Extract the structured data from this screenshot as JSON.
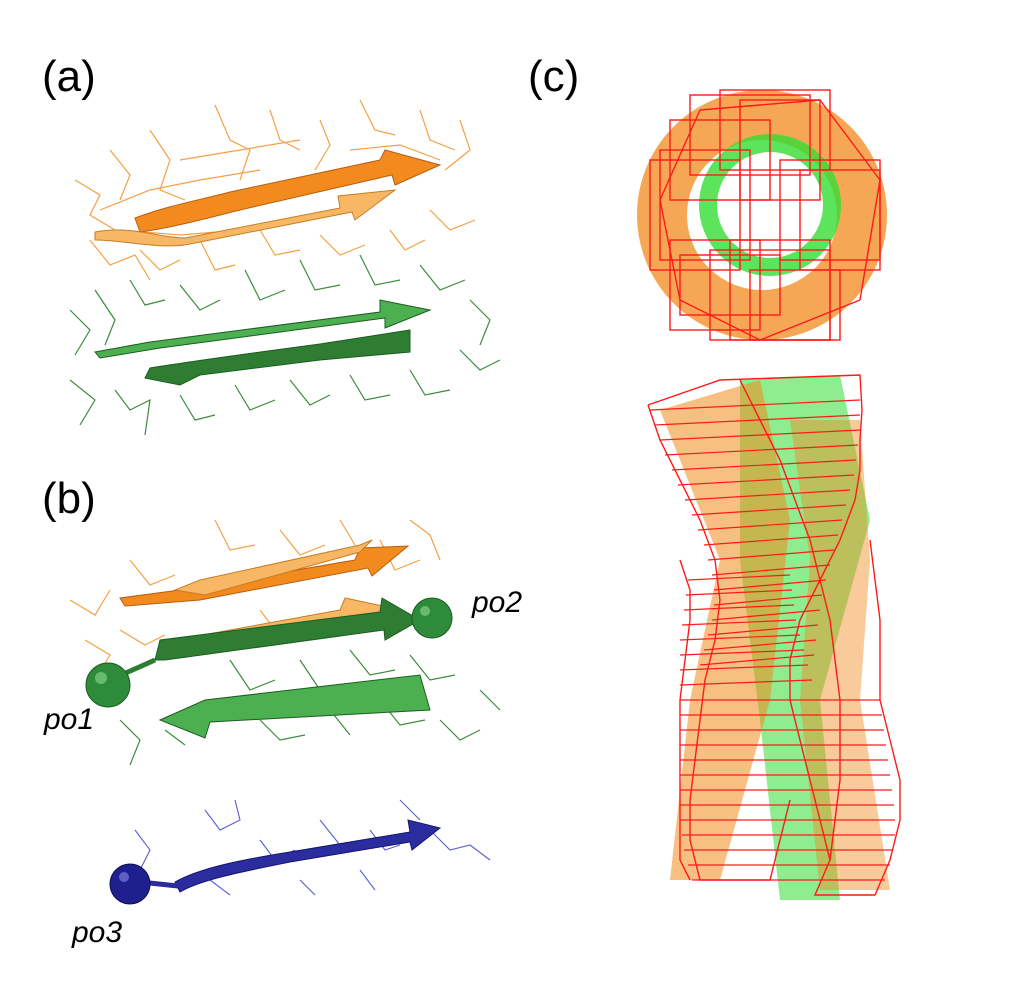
{
  "panels": {
    "a": {
      "label": "(a)"
    },
    "b": {
      "label": "(b)"
    },
    "c": {
      "label": "(c)"
    }
  },
  "points": {
    "po1": "po1",
    "po2": "po2",
    "po3": "po3"
  },
  "colors": {
    "orange": "#f28a1e",
    "orange_light": "#f8b765",
    "green": "#2e7d32",
    "green_light": "#4caf50",
    "blue": "#2b2c9e",
    "red": "#ff1a1a",
    "bright_green": "#33dd33"
  }
}
